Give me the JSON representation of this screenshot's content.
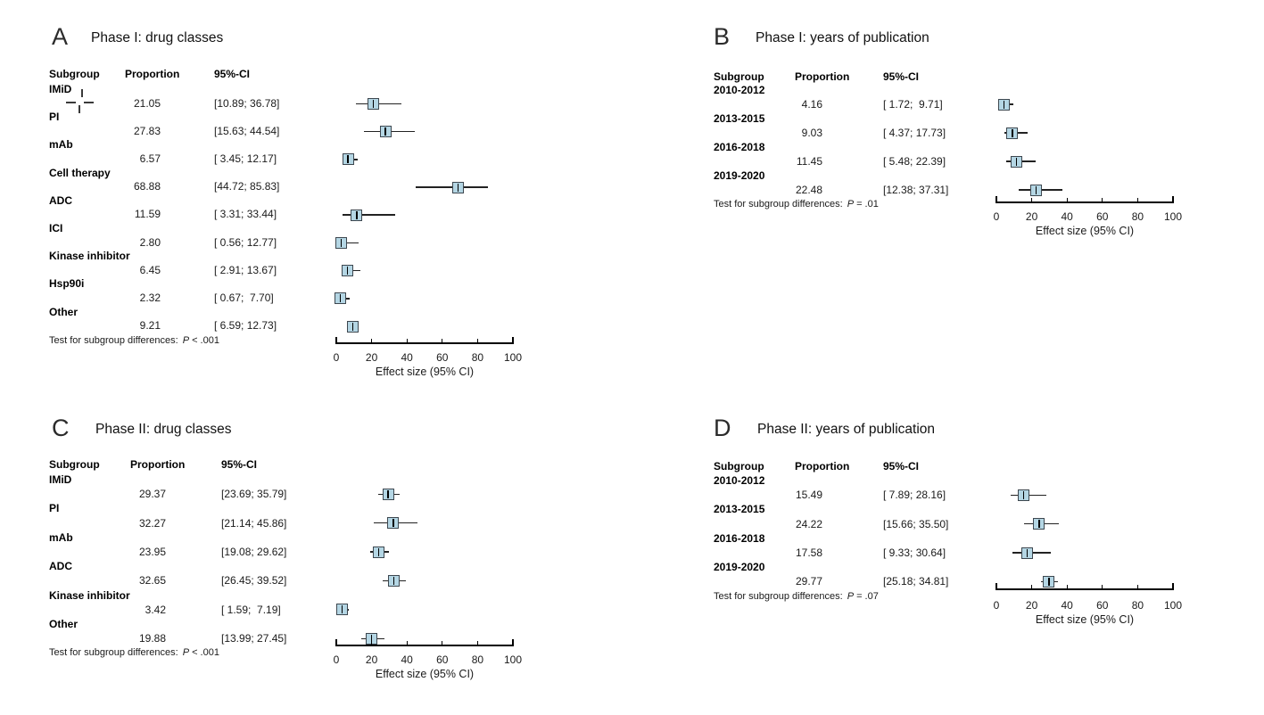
{
  "figure": {
    "background": "#ffffff"
  },
  "columns": {
    "subgroup": "Subgroup",
    "proportion": "Proportion",
    "ci": "95%-CI"
  },
  "test_prefix": "Test for subgroup differences:",
  "p_symbol": "P",
  "axis": {
    "ticks": [
      "0",
      "20",
      "40",
      "60",
      "80",
      "100"
    ],
    "label": "Effect size (95% CI)"
  },
  "colors": {
    "marker_fill": "#b4d6e4",
    "marker_border": "#3d474f",
    "ci_line": "#222222",
    "text": "#1a1a1a"
  },
  "chart_data": [
    {
      "type": "scatter",
      "variant": "forest-plot",
      "letter": "A",
      "title": "Phase I: drug classes",
      "xlabel": "Effect size (95% CI)",
      "xlim": [
        0,
        100
      ],
      "xticks": [
        0,
        20,
        40,
        60,
        80,
        100
      ],
      "rows": [
        {
          "subgroup": "IMiD",
          "proportion": "21.05",
          "ci_text": "[10.89; 36.78]",
          "est": 21.05,
          "lo": 10.89,
          "hi": 36.78
        },
        {
          "subgroup": "PI",
          "proportion": "27.83",
          "ci_text": "[15.63; 44.54]",
          "est": 27.83,
          "lo": 15.63,
          "hi": 44.54
        },
        {
          "subgroup": "mAb",
          "proportion": "6.57",
          "ci_text": "[ 3.45; 12.17]",
          "est": 6.57,
          "lo": 3.45,
          "hi": 12.17
        },
        {
          "subgroup": "Cell therapy",
          "proportion": "68.88",
          "ci_text": "[44.72; 85.83]",
          "est": 68.88,
          "lo": 44.72,
          "hi": 85.83
        },
        {
          "subgroup": "ADC",
          "proportion": "11.59",
          "ci_text": "[ 3.31; 33.44]",
          "est": 11.59,
          "lo": 3.31,
          "hi": 33.44
        },
        {
          "subgroup": "ICI",
          "proportion": "2.80",
          "ci_text": "[ 0.56; 12.77]",
          "est": 2.8,
          "lo": 0.56,
          "hi": 12.77
        },
        {
          "subgroup": "Kinase inhibitor",
          "proportion": "6.45",
          "ci_text": "[ 2.91; 13.67]",
          "est": 6.45,
          "lo": 2.91,
          "hi": 13.67
        },
        {
          "subgroup": "Hsp90i",
          "proportion": "2.32",
          "ci_text": "[ 0.67;  7.70]",
          "est": 2.32,
          "lo": 0.67,
          "hi": 7.7
        },
        {
          "subgroup": "Other",
          "proportion": "9.21",
          "ci_text": "[ 6.59; 12.73]",
          "est": 9.21,
          "lo": 6.59,
          "hi": 12.73
        }
      ],
      "test_p": "< .001"
    },
    {
      "type": "scatter",
      "variant": "forest-plot",
      "letter": "B",
      "title": "Phase I: years of publication",
      "xlabel": "Effect size (95% CI)",
      "xlim": [
        0,
        100
      ],
      "xticks": [
        0,
        20,
        40,
        60,
        80,
        100
      ],
      "rows": [
        {
          "subgroup": "2010-2012",
          "proportion": "4.16",
          "ci_text": "[ 1.72;  9.71]",
          "est": 4.16,
          "lo": 1.72,
          "hi": 9.71
        },
        {
          "subgroup": "2013-2015",
          "proportion": "9.03",
          "ci_text": "[ 4.37; 17.73]",
          "est": 9.03,
          "lo": 4.37,
          "hi": 17.73
        },
        {
          "subgroup": "2016-2018",
          "proportion": "11.45",
          "ci_text": "[ 5.48; 22.39]",
          "est": 11.45,
          "lo": 5.48,
          "hi": 22.39
        },
        {
          "subgroup": "2019-2020",
          "proportion": "22.48",
          "ci_text": "[12.38; 37.31]",
          "est": 22.48,
          "lo": 12.38,
          "hi": 37.31
        }
      ],
      "test_p": "= .01"
    },
    {
      "type": "scatter",
      "variant": "forest-plot",
      "letter": "C",
      "title": "Phase II: drug classes",
      "xlabel": "Effect size (95% CI)",
      "xlim": [
        0,
        100
      ],
      "xticks": [
        0,
        20,
        40,
        60,
        80,
        100
      ],
      "rows": [
        {
          "subgroup": "IMiD",
          "proportion": "29.37",
          "ci_text": "[23.69; 35.79]",
          "est": 29.37,
          "lo": 23.69,
          "hi": 35.79
        },
        {
          "subgroup": "PI",
          "proportion": "32.27",
          "ci_text": "[21.14; 45.86]",
          "est": 32.27,
          "lo": 21.14,
          "hi": 45.86
        },
        {
          "subgroup": "mAb",
          "proportion": "23.95",
          "ci_text": "[19.08; 29.62]",
          "est": 23.95,
          "lo": 19.08,
          "hi": 29.62
        },
        {
          "subgroup": "ADC",
          "proportion": "32.65",
          "ci_text": "[26.45; 39.52]",
          "est": 32.65,
          "lo": 26.45,
          "hi": 39.52
        },
        {
          "subgroup": "Kinase inhibitor",
          "proportion": "3.42",
          "ci_text": "[ 1.59;  7.19]",
          "est": 3.42,
          "lo": 1.59,
          "hi": 7.19
        },
        {
          "subgroup": "Other",
          "proportion": "19.88",
          "ci_text": "[13.99; 27.45]",
          "est": 19.88,
          "lo": 13.99,
          "hi": 27.45
        }
      ],
      "test_p": "< .001"
    },
    {
      "type": "scatter",
      "variant": "forest-plot",
      "letter": "D",
      "title": "Phase II: years of publication",
      "xlabel": "Effect size (95% CI)",
      "xlim": [
        0,
        100
      ],
      "xticks": [
        0,
        20,
        40,
        60,
        80,
        100
      ],
      "rows": [
        {
          "subgroup": "2010-2012",
          "proportion": "15.49",
          "ci_text": "[ 7.89; 28.16]",
          "est": 15.49,
          "lo": 7.89,
          "hi": 28.16
        },
        {
          "subgroup": "2013-2015",
          "proportion": "24.22",
          "ci_text": "[15.66; 35.50]",
          "est": 24.22,
          "lo": 15.66,
          "hi": 35.5
        },
        {
          "subgroup": "2016-2018",
          "proportion": "17.58",
          "ci_text": "[ 9.33; 30.64]",
          "est": 17.58,
          "lo": 9.33,
          "hi": 30.64
        },
        {
          "subgroup": "2019-2020",
          "proportion": "29.77",
          "ci_text": "[25.18; 34.81]",
          "est": 29.77,
          "lo": 25.18,
          "hi": 34.81
        }
      ],
      "test_p": "= .07"
    }
  ]
}
